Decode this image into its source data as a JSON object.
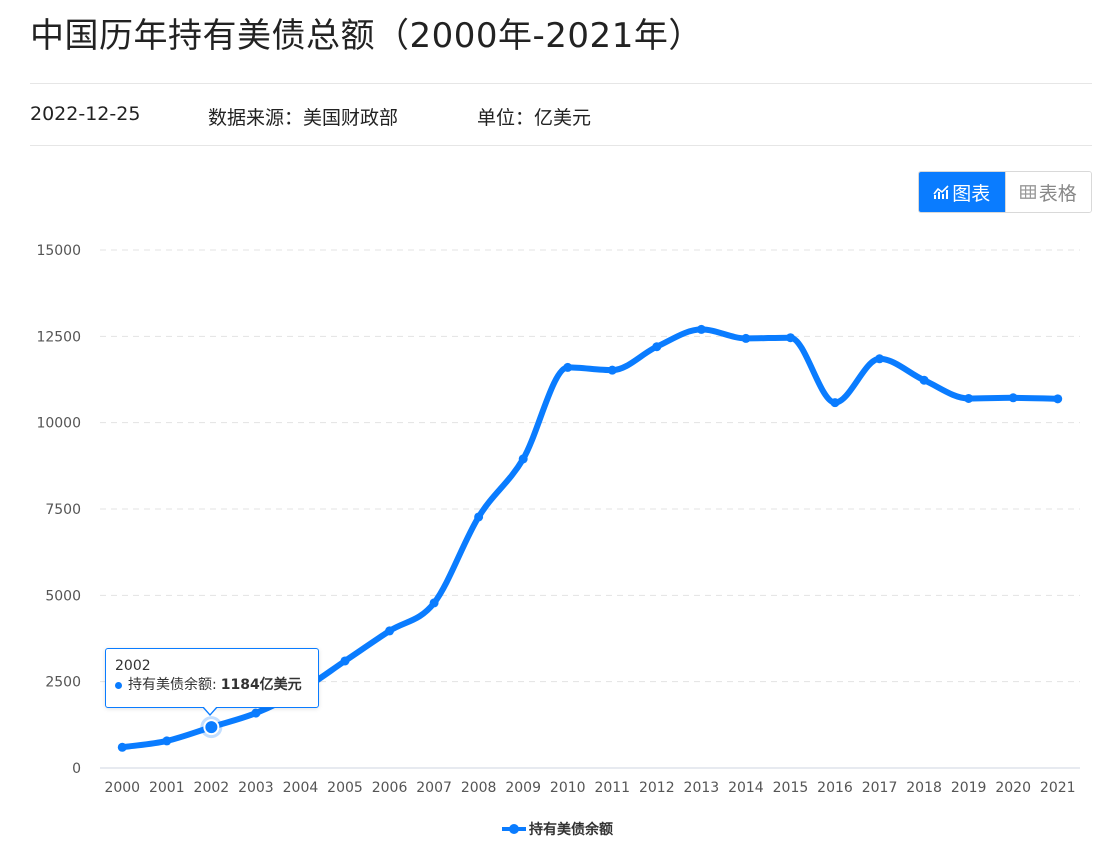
{
  "header": {
    "title": "中国历年持有美债总额（2000年-2021年）",
    "date": "2022-12-25",
    "source": "数据来源：美国财政部",
    "unit": "单位：亿美元"
  },
  "view_toggle": {
    "chart_label": "图表",
    "table_label": "表格",
    "active": "chart"
  },
  "tooltip": {
    "year": "2002",
    "series_label": "持有美债余额:",
    "value_text": "1184亿美元"
  },
  "colors": {
    "accent": "#0a7cff",
    "grid": "#e3e3e3",
    "axis_text": "#555555"
  },
  "chart_data": {
    "type": "line",
    "title": "中国历年持有美债总额（2000年-2021年）",
    "x": [
      "2000",
      "2001",
      "2002",
      "2003",
      "2004",
      "2005",
      "2006",
      "2007",
      "2008",
      "2009",
      "2010",
      "2011",
      "2012",
      "2013",
      "2014",
      "2015",
      "2016",
      "2017",
      "2018",
      "2019",
      "2020",
      "2021"
    ],
    "series": [
      {
        "name": "持有美债余额",
        "values": [
          600,
          785,
          1184,
          1590,
          2230,
          3100,
          3970,
          4780,
          7270,
          8950,
          11600,
          11520,
          12200,
          12700,
          12440,
          12460,
          10580,
          11850,
          11230,
          10700,
          10720,
          10690
        ]
      }
    ],
    "yticks": [
      0,
      2500,
      5000,
      7500,
      10000,
      12500,
      15000
    ],
    "ylim": [
      0,
      15000
    ],
    "grid": true,
    "legend_position": "bottom-center",
    "highlighted_point": "2002"
  }
}
